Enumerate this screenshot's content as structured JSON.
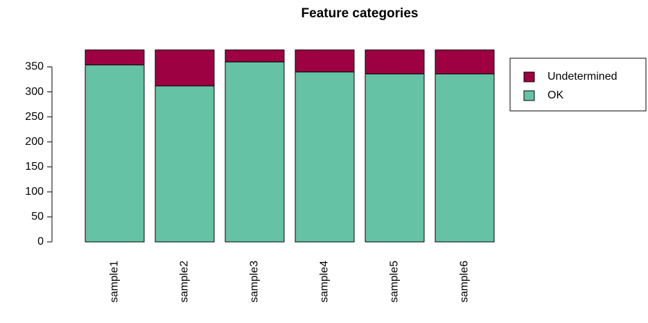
{
  "chart_data": {
    "type": "stacked-bar",
    "title": "Feature categories",
    "categories": [
      "sample1",
      "sample2",
      "sample3",
      "sample4",
      "sample5",
      "sample6"
    ],
    "series": [
      {
        "name": "OK",
        "color": "#66c2a5",
        "values": [
          354,
          312,
          360,
          340,
          336,
          336
        ]
      },
      {
        "name": "Undetermined",
        "color": "#9e0142",
        "values": [
          30,
          72,
          24,
          44,
          48,
          48
        ]
      }
    ],
    "ylim": [
      0,
      384
    ],
    "yticks": [
      0,
      50,
      100,
      150,
      200,
      250,
      300,
      350
    ],
    "legend": "right"
  }
}
